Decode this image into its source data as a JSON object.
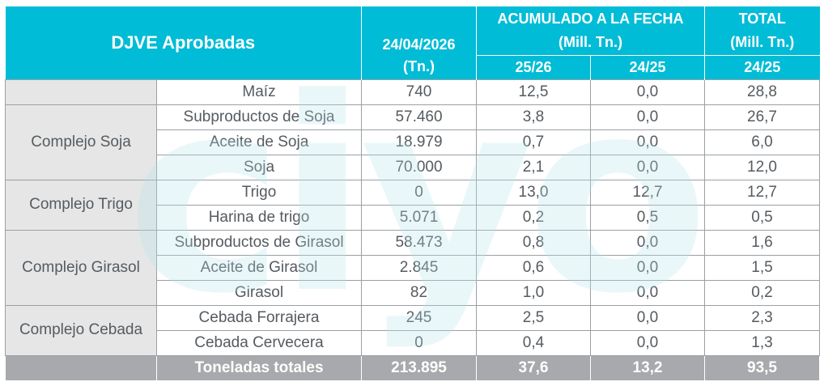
{
  "header": {
    "title": "DJVE Aprobadas",
    "date": "24/04/2026",
    "unit_tn": "(Tn.)",
    "acumulado_title": "ACUMULADO A LA FECHA",
    "acumulado_unit": "(Mill. Tn.)",
    "total_title": "TOTAL",
    "total_unit": "(Mill. Tn.)",
    "col_2526": "25/26",
    "col_2425": "24/25",
    "col_total_2425": "24/25"
  },
  "groups": [
    {
      "name": "",
      "rows": [
        {
          "product": "Maíz",
          "tn": "740",
          "acum_2526": "12,5",
          "acum_2425": "0,0",
          "total_2425": "28,8"
        }
      ]
    },
    {
      "name": "Complejo Soja",
      "rows": [
        {
          "product": "Subproductos de Soja",
          "tn": "57.460",
          "acum_2526": "3,8",
          "acum_2425": "0,0",
          "total_2425": "26,7"
        },
        {
          "product": "Aceite de Soja",
          "tn": "18.979",
          "acum_2526": "0,7",
          "acum_2425": "0,0",
          "total_2425": "6,0"
        },
        {
          "product": "Soja",
          "tn": "70.000",
          "acum_2526": "2,1",
          "acum_2425": "0,0",
          "total_2425": "12,0"
        }
      ]
    },
    {
      "name": "Complejo Trigo",
      "rows": [
        {
          "product": "Trigo",
          "tn": "0",
          "acum_2526": "13,0",
          "acum_2425": "12,7",
          "total_2425": "12,7"
        },
        {
          "product": "Harina de trigo",
          "tn": "5.071",
          "acum_2526": "0,2",
          "acum_2425": "0,5",
          "total_2425": "0,5"
        }
      ]
    },
    {
      "name": "Complejo Girasol",
      "rows": [
        {
          "product": "Subproductos de Girasol",
          "tn": "58.473",
          "acum_2526": "0,8",
          "acum_2425": "0,0",
          "total_2425": "1,6"
        },
        {
          "product": "Aceite de Girasol",
          "tn": "2.845",
          "acum_2526": "0,6",
          "acum_2425": "0,0",
          "total_2425": "1,5"
        },
        {
          "product": "Girasol",
          "tn": "82",
          "acum_2526": "1,0",
          "acum_2425": "0,0",
          "total_2425": "0,2"
        }
      ]
    },
    {
      "name": "Complejo Cebada",
      "rows": [
        {
          "product": "Cebada Forrajera",
          "tn": "245",
          "acum_2526": "2,5",
          "acum_2425": "0,0",
          "total_2425": "2,3"
        },
        {
          "product": "Cebada Cervecera",
          "tn": "0",
          "acum_2526": "0,4",
          "acum_2425": "0,0",
          "total_2425": "1,3"
        }
      ]
    }
  ],
  "totals": {
    "label": "Toneladas totales",
    "tn": "213.895",
    "acum_2526": "37,6",
    "acum_2425": "13,2",
    "total_2425": "93,5"
  },
  "colors": {
    "header_bg": "#00bcd6",
    "group_bg": "#e6e6e6",
    "total_bg": "#a7a9ac",
    "text": "#555b60"
  }
}
